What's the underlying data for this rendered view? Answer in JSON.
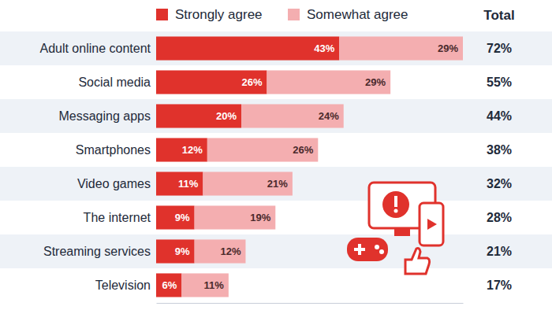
{
  "chart_data": {
    "type": "bar",
    "orientation": "horizontal",
    "stacked": true,
    "data_labels": true,
    "tick_labels": "y",
    "grid": false,
    "legend": "top",
    "categories": [
      "Adult online content",
      "Social media",
      "Messaging apps",
      "Smartphones",
      "Video games",
      "The internet",
      "Streaming services",
      "Television"
    ],
    "series": [
      {
        "name": "Strongly agree",
        "color": "#e0322c",
        "values": [
          43,
          26,
          20,
          12,
          11,
          9,
          9,
          6
        ],
        "value_labels": [
          "43%",
          "26%",
          "20%",
          "12%",
          "11%",
          "9%",
          "9%",
          "6%"
        ]
      },
      {
        "name": "Somewhat agree",
        "color": "#f4aeb0",
        "values": [
          29,
          29,
          24,
          26,
          21,
          19,
          12,
          11
        ],
        "value_labels": [
          "29%",
          "29%",
          "24%",
          "26%",
          "21%",
          "19%",
          "12%",
          "11%"
        ]
      }
    ],
    "totals": {
      "title": "Total",
      "values": [
        72,
        55,
        44,
        38,
        32,
        28,
        21,
        17
      ],
      "value_labels": [
        "72%",
        "55%",
        "44%",
        "38%",
        "32%",
        "28%",
        "21%",
        "17%"
      ]
    },
    "xlim": [
      0,
      72
    ],
    "xticks": []
  }
}
